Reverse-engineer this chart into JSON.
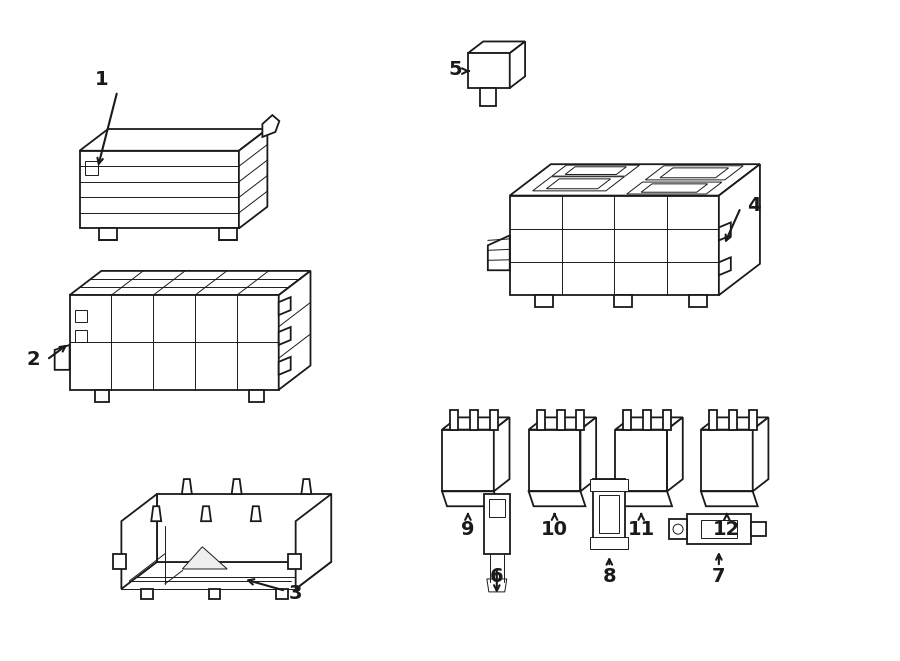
{
  "background_color": "#ffffff",
  "line_color": "#1a1a1a",
  "line_width": 1.3,
  "thin_lw": 0.7,
  "label_fontsize": 12,
  "label_fontweight": "bold"
}
